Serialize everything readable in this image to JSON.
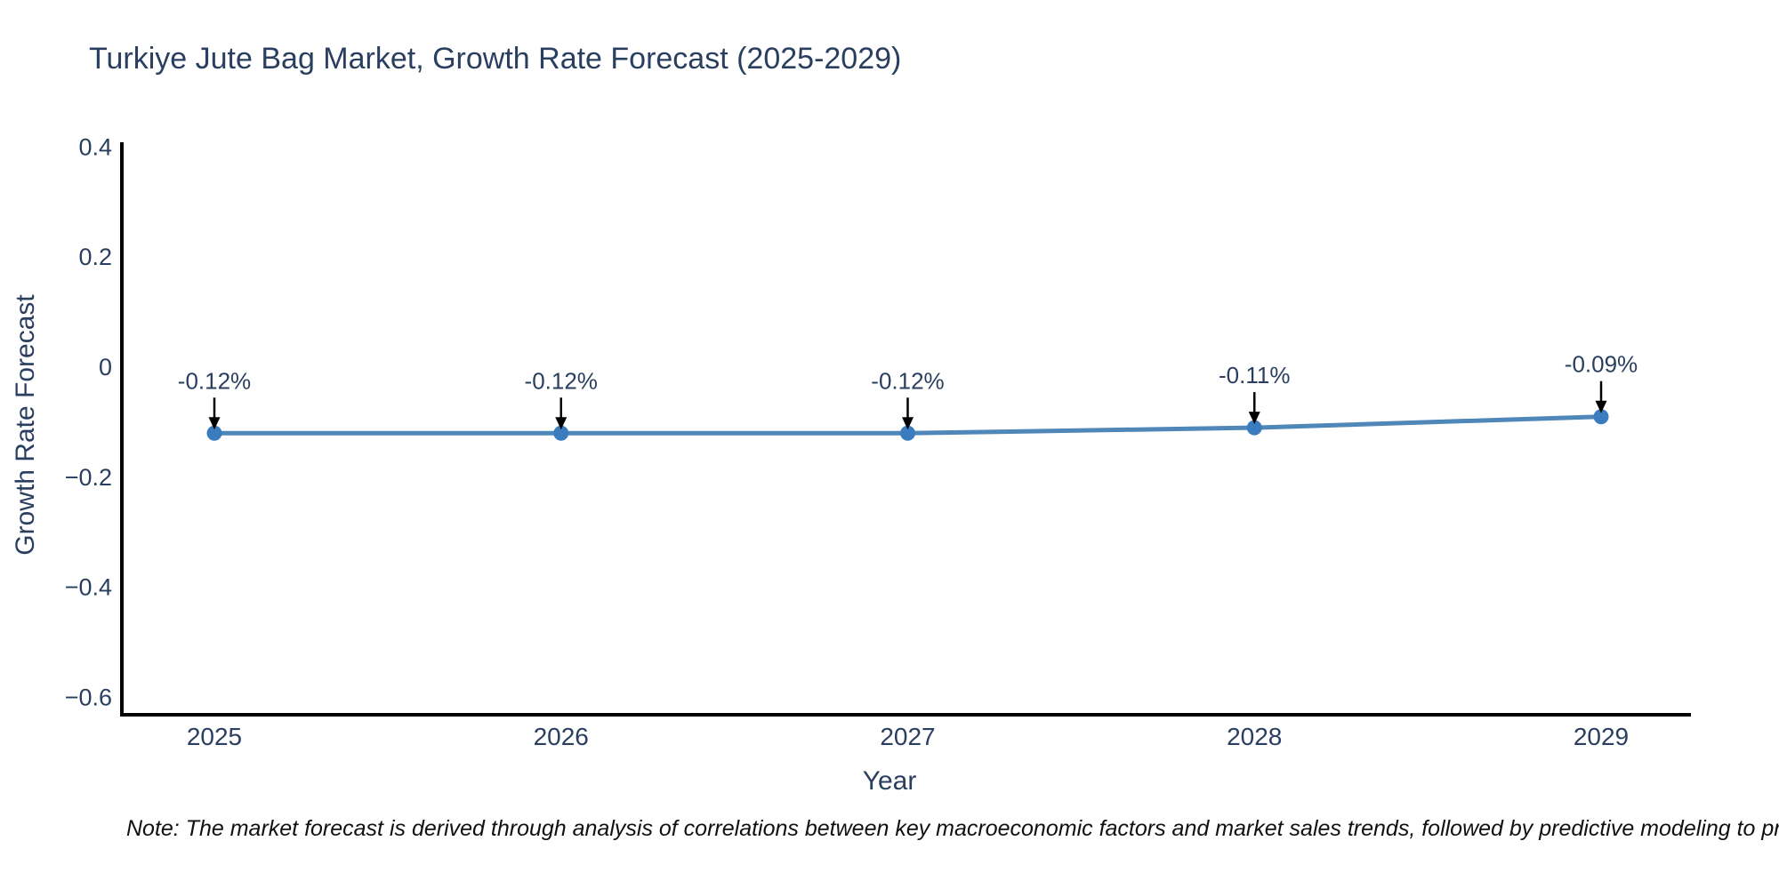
{
  "chart_data": {
    "type": "line",
    "title": "Turkiye Jute Bag Market, Growth Rate Forecast (2025-2029)",
    "xlabel": "Year",
    "ylabel": "Growth Rate Forecast",
    "x": [
      2025,
      2026,
      2027,
      2028,
      2029
    ],
    "values": [
      -0.12,
      -0.12,
      -0.12,
      -0.11,
      -0.09
    ],
    "point_labels": [
      "-0.12%",
      "-0.12%",
      "-0.12%",
      "-0.11%",
      "-0.09%"
    ],
    "xtick_labels": [
      "2025",
      "2026",
      "2027",
      "2028",
      "2029"
    ],
    "ytick_values": [
      0.4,
      0.2,
      0,
      -0.2,
      -0.4,
      -0.6
    ],
    "ytick_labels": [
      "0.4",
      "0.2",
      "0",
      "−0.2",
      "−0.4",
      "−0.6"
    ],
    "ylim": [
      -0.63,
      0.41
    ],
    "grid": "off",
    "legend": "none",
    "colors": {
      "line": "#4e87b8",
      "marker": "#3b7cbe",
      "axis": "#000000",
      "text": "#2a3f5f",
      "arrow": "#000000",
      "background": "#ffffff"
    }
  },
  "note": {
    "text": "Note: The market forecast is derived through analysis of correlations between key macroeconomic factors and market sales trends, followed by predictive modeling to project future sa"
  }
}
